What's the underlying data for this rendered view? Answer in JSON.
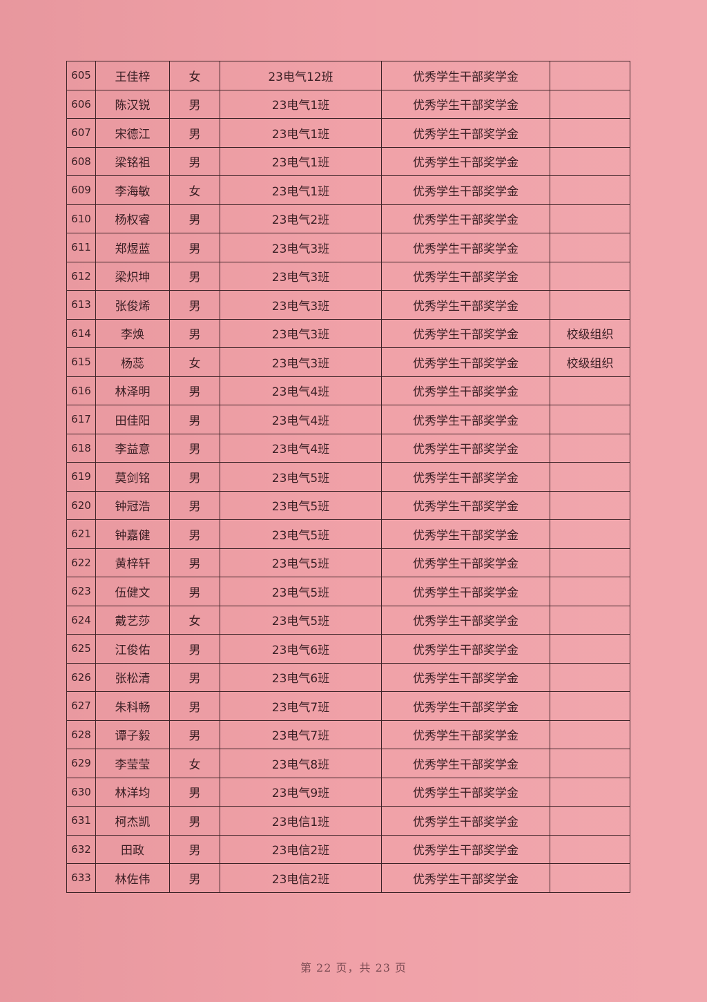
{
  "table": {
    "rows": [
      [
        "605",
        "王佳梓",
        "女",
        "23电气12班",
        "优秀学生干部奖学金",
        ""
      ],
      [
        "606",
        "陈汉锐",
        "男",
        "23电气1班",
        "优秀学生干部奖学金",
        ""
      ],
      [
        "607",
        "宋德江",
        "男",
        "23电气1班",
        "优秀学生干部奖学金",
        ""
      ],
      [
        "608",
        "梁铭祖",
        "男",
        "23电气1班",
        "优秀学生干部奖学金",
        ""
      ],
      [
        "609",
        "李海敏",
        "女",
        "23电气1班",
        "优秀学生干部奖学金",
        ""
      ],
      [
        "610",
        "杨权睿",
        "男",
        "23电气2班",
        "优秀学生干部奖学金",
        ""
      ],
      [
        "611",
        "郑煜蓝",
        "男",
        "23电气3班",
        "优秀学生干部奖学金",
        ""
      ],
      [
        "612",
        "梁炽坤",
        "男",
        "23电气3班",
        "优秀学生干部奖学金",
        ""
      ],
      [
        "613",
        "张俊烯",
        "男",
        "23电气3班",
        "优秀学生干部奖学金",
        ""
      ],
      [
        "614",
        "李焕",
        "男",
        "23电气3班",
        "优秀学生干部奖学金",
        "校级组织"
      ],
      [
        "615",
        "杨蕊",
        "女",
        "23电气3班",
        "优秀学生干部奖学金",
        "校级组织"
      ],
      [
        "616",
        "林泽明",
        "男",
        "23电气4班",
        "优秀学生干部奖学金",
        ""
      ],
      [
        "617",
        "田佳阳",
        "男",
        "23电气4班",
        "优秀学生干部奖学金",
        ""
      ],
      [
        "618",
        "李益意",
        "男",
        "23电气4班",
        "优秀学生干部奖学金",
        ""
      ],
      [
        "619",
        "莫剑铭",
        "男",
        "23电气5班",
        "优秀学生干部奖学金",
        ""
      ],
      [
        "620",
        "钟冠浩",
        "男",
        "23电气5班",
        "优秀学生干部奖学金",
        ""
      ],
      [
        "621",
        "钟嘉健",
        "男",
        "23电气5班",
        "优秀学生干部奖学金",
        ""
      ],
      [
        "622",
        "黄梓轩",
        "男",
        "23电气5班",
        "优秀学生干部奖学金",
        ""
      ],
      [
        "623",
        "伍健文",
        "男",
        "23电气5班",
        "优秀学生干部奖学金",
        ""
      ],
      [
        "624",
        "戴艺莎",
        "女",
        "23电气5班",
        "优秀学生干部奖学金",
        ""
      ],
      [
        "625",
        "江俊佑",
        "男",
        "23电气6班",
        "优秀学生干部奖学金",
        ""
      ],
      [
        "626",
        "张松清",
        "男",
        "23电气6班",
        "优秀学生干部奖学金",
        ""
      ],
      [
        "627",
        "朱科畅",
        "男",
        "23电气7班",
        "优秀学生干部奖学金",
        ""
      ],
      [
        "628",
        "谭子毅",
        "男",
        "23电气7班",
        "优秀学生干部奖学金",
        ""
      ],
      [
        "629",
        "李莹莹",
        "女",
        "23电气8班",
        "优秀学生干部奖学金",
        ""
      ],
      [
        "630",
        "林洋均",
        "男",
        "23电气9班",
        "优秀学生干部奖学金",
        ""
      ],
      [
        "631",
        "柯杰凯",
        "男",
        "23电信1班",
        "优秀学生干部奖学金",
        ""
      ],
      [
        "632",
        "田政",
        "男",
        "23电信2班",
        "优秀学生干部奖学金",
        ""
      ],
      [
        "633",
        "林佐伟",
        "男",
        "23电信2班",
        "优秀学生干部奖学金",
        ""
      ]
    ]
  },
  "footer": {
    "page_text": "第 22 页，共 23 页"
  },
  "colors": {
    "paper": "#ef9ca3",
    "ink": "#3b2226"
  }
}
